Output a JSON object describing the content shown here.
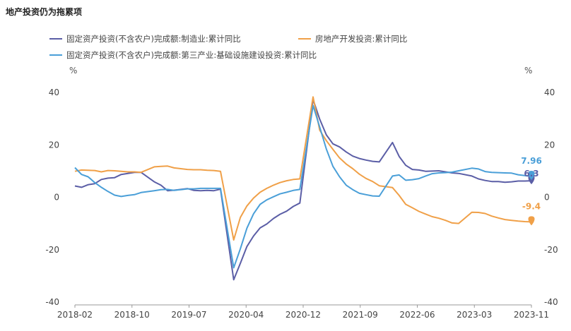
{
  "chart_data": {
    "type": "line",
    "title": "地产投资仍为拖累项",
    "left_axis_unit": "%",
    "right_axis_unit": "%",
    "ylim": [
      -40,
      40
    ],
    "y_ticks": [
      40,
      20,
      0,
      -20,
      -40
    ],
    "x_labels": [
      "2018-02",
      "2018-10",
      "2019-07",
      "2020-04",
      "2020-12",
      "2021-09",
      "2022-06",
      "2023-03",
      "2023-11"
    ],
    "x": [
      "2018-02",
      "2018-03",
      "2018-04",
      "2018-05",
      "2018-06",
      "2018-07",
      "2018-08",
      "2018-09",
      "2018-10",
      "2018-11",
      "2018-12",
      "2019-02",
      "2019-03",
      "2019-04",
      "2019-05",
      "2019-06",
      "2019-07",
      "2019-08",
      "2019-09",
      "2019-10",
      "2019-11",
      "2019-12",
      "2020-02",
      "2020-03",
      "2020-04",
      "2020-05",
      "2020-06",
      "2020-07",
      "2020-08",
      "2020-09",
      "2020-10",
      "2020-11",
      "2020-12",
      "2021-02",
      "2021-03",
      "2021-04",
      "2021-05",
      "2021-06",
      "2021-07",
      "2021-08",
      "2021-09",
      "2021-10",
      "2021-11",
      "2021-12",
      "2022-02",
      "2022-03",
      "2022-04",
      "2022-05",
      "2022-06",
      "2022-07",
      "2022-08",
      "2022-09",
      "2022-10",
      "2022-11",
      "2022-12",
      "2023-02",
      "2023-03",
      "2023-04",
      "2023-05",
      "2023-06",
      "2023-07",
      "2023-08",
      "2023-09",
      "2023-10",
      "2023-11"
    ],
    "series": [
      {
        "name": "固定资产投资(不含农户)完成额:制造业:累计同比",
        "color": "#5b5ea6",
        "values": [
          4.3,
          3.8,
          4.8,
          5.2,
          6.8,
          7.3,
          7.5,
          8.7,
          9.1,
          9.5,
          9.5,
          5.9,
          4.6,
          2.5,
          2.7,
          3.0,
          3.3,
          2.6,
          2.5,
          2.6,
          2.5,
          3.1,
          -31.5,
          -25.2,
          -18.8,
          -14.8,
          -11.7,
          -10.2,
          -8.1,
          -6.5,
          -5.3,
          -3.5,
          -2.2,
          37.3,
          29.8,
          23.8,
          20.4,
          19.2,
          17.3,
          15.7,
          14.8,
          14.2,
          13.7,
          13.5,
          20.9,
          15.6,
          12.2,
          10.6,
          10.4,
          9.9,
          10.0,
          10.1,
          9.7,
          9.3,
          9.1,
          8.1,
          7.0,
          6.4,
          6.0,
          6.0,
          5.7,
          5.9,
          6.2,
          6.2,
          6.3
        ]
      },
      {
        "name": "房地产开发投资:累计同比",
        "color": "#f0a048",
        "values": [
          9.9,
          10.4,
          10.3,
          10.2,
          9.7,
          10.2,
          10.1,
          9.9,
          9.7,
          9.7,
          9.5,
          11.6,
          11.8,
          11.9,
          11.2,
          10.9,
          10.6,
          10.5,
          10.5,
          10.3,
          10.2,
          9.9,
          -16.3,
          -7.7,
          -3.3,
          -0.3,
          1.9,
          3.4,
          4.6,
          5.6,
          6.3,
          6.8,
          7.0,
          38.3,
          25.6,
          21.6,
          18.3,
          15.0,
          12.7,
          10.9,
          8.8,
          7.2,
          6.0,
          4.4,
          3.7,
          0.7,
          -2.7,
          -4.0,
          -5.4,
          -6.4,
          -7.4,
          -8.0,
          -8.8,
          -9.8,
          -10.0,
          -5.7,
          -5.8,
          -6.2,
          -7.2,
          -7.9,
          -8.5,
          -8.8,
          -9.1,
          -9.3,
          -9.4
        ]
      },
      {
        "name": "固定资产投资(不含农户)完成额:第三产业:基础设施建设投资:累计同比",
        "color": "#4a9fd8",
        "values": [
          11.3,
          8.7,
          7.8,
          5.6,
          3.8,
          2.2,
          0.8,
          0.3,
          0.7,
          1.0,
          1.8,
          2.5,
          2.9,
          3.0,
          2.6,
          2.9,
          3.2,
          3.2,
          3.4,
          3.4,
          3.4,
          3.4,
          -26.9,
          -19.7,
          -11.8,
          -6.3,
          -2.7,
          -1.0,
          0.2,
          1.3,
          1.9,
          2.6,
          3.0,
          35.0,
          26.8,
          18.4,
          11.8,
          7.8,
          4.6,
          2.9,
          1.5,
          1.0,
          0.5,
          0.4,
          8.1,
          8.5,
          6.5,
          6.7,
          7.1,
          8.1,
          9.0,
          9.3,
          9.4,
          9.6,
          10.1,
          11.1,
          10.8,
          9.8,
          9.5,
          9.4,
          9.3,
          9.2,
          8.6,
          8.3,
          7.96
        ]
      }
    ],
    "end_labels": [
      {
        "text": "7.96",
        "color": "#4a9fd8"
      },
      {
        "text": "6.3",
        "color": "#5b5ea6"
      },
      {
        "text": "-9.4",
        "color": "#f0a048"
      }
    ],
    "legend": [
      {
        "label": "固定资产投资(不含农户)完成额:制造业:累计同比",
        "color": "#5b5ea6"
      },
      {
        "label": "房地产开发投资:累计同比",
        "color": "#f0a048"
      },
      {
        "label": "固定资产投资(不含农户)完成额:第三产业:基础设施建设投资:累计同比",
        "color": "#4a9fd8"
      }
    ]
  }
}
